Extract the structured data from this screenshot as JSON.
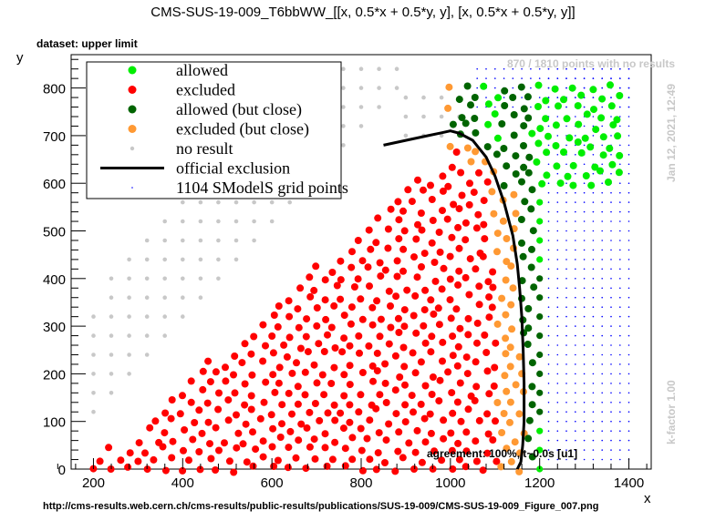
{
  "chart_data": {
    "type": "scatter",
    "title": "CMS-SUS-19-009_T6bbWW_[[x, 0.5*x + 0.5*y, y], [x, 0.5*x + 0.5*y, y]]",
    "dataset_label": "dataset: upper limit",
    "xlabel": "x",
    "ylabel": "y",
    "xlim": [
      150,
      1450
    ],
    "ylim": [
      0,
      870
    ],
    "xticks": [
      200,
      400,
      600,
      800,
      1000,
      1200,
      1400
    ],
    "yticks": [
      0,
      100,
      200,
      300,
      400,
      500,
      600,
      700,
      800
    ],
    "grid": false,
    "legend_position": "top-left",
    "legend": [
      {
        "label": "allowed",
        "color": "#00ee00",
        "marker": "dot"
      },
      {
        "label": "excluded",
        "color": "#ff0000",
        "marker": "dot"
      },
      {
        "label": "allowed (but close)",
        "color": "#006400",
        "marker": "dot"
      },
      {
        "label": "excluded (but close)",
        "color": "#ff9933",
        "marker": "dot"
      },
      {
        "label": "no result",
        "color": "#c8c8c8",
        "marker": "small-dot"
      },
      {
        "label": "official exclusion",
        "color": "#000000",
        "marker": "line"
      },
      {
        "label": "1104 SModelS grid points",
        "color": "#0000ff",
        "marker": "tiny-dot"
      }
    ],
    "no_results_note": "870 / 1810 points with no results",
    "timestamp": "Jan 12, 2021, 12:49",
    "kfactor": "k-factor 1.00",
    "agreement": "agreement: 100%, t~0.0s [u1]",
    "source_url": "http://cms-results.web.cern.ch/cms-results/public-results/publications/SUS-19-009/CMS-SUS-19-009_Figure_007.png",
    "official_exclusion": {
      "x": [
        850,
        900,
        950,
        980,
        1000,
        1020,
        1050,
        1080,
        1100,
        1120,
        1140,
        1150,
        1155,
        1160,
        1163,
        1165,
        1165,
        1162,
        1158,
        1150
      ],
      "y": [
        680,
        690,
        700,
        706,
        710,
        705,
        690,
        655,
        615,
        560,
        490,
        430,
        380,
        320,
        250,
        180,
        100,
        50,
        15,
        0
      ]
    }
  }
}
